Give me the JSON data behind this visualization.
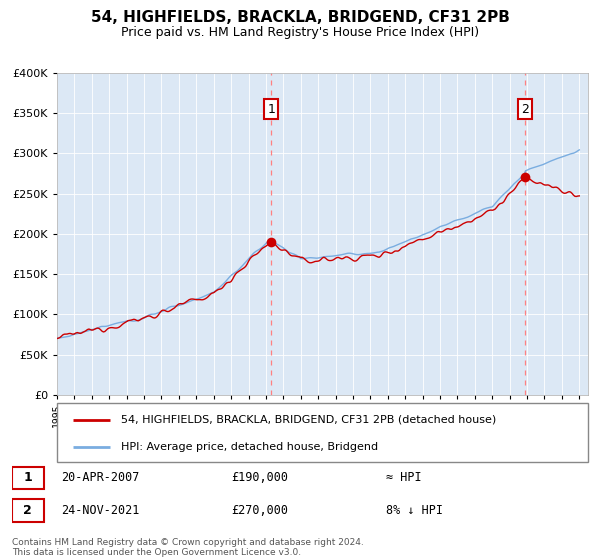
{
  "title": "54, HIGHFIELDS, BRACKLA, BRIDGEND, CF31 2PB",
  "subtitle": "Price paid vs. HM Land Registry's House Price Index (HPI)",
  "ylim": [
    0,
    400000
  ],
  "xlim_start": 1995.0,
  "xlim_end": 2025.5,
  "sale1_date": 2007.3,
  "sale1_price": 190000,
  "sale1_label": "1",
  "sale2_date": 2021.9,
  "sale2_price": 270000,
  "sale2_label": "2",
  "legend_line1": "54, HIGHFIELDS, BRACKLA, BRIDGEND, CF31 2PB (detached house)",
  "legend_line2": "HPI: Average price, detached house, Bridgend",
  "annotation1": "20-APR-2007",
  "annotation1_price": "£190,000",
  "annotation1_hpi": "≈ HPI",
  "annotation2": "24-NOV-2021",
  "annotation2_price": "£270,000",
  "annotation2_hpi": "8% ↓ HPI",
  "footer": "Contains HM Land Registry data © Crown copyright and database right 2024.\nThis data is licensed under the Open Government Licence v3.0.",
  "hpi_color": "#7aade0",
  "price_color": "#cc0000",
  "dashed_color": "#ff8080",
  "background_color": "#ffffff",
  "plot_bg_color": "#dce8f5",
  "grid_color": "#ffffff"
}
